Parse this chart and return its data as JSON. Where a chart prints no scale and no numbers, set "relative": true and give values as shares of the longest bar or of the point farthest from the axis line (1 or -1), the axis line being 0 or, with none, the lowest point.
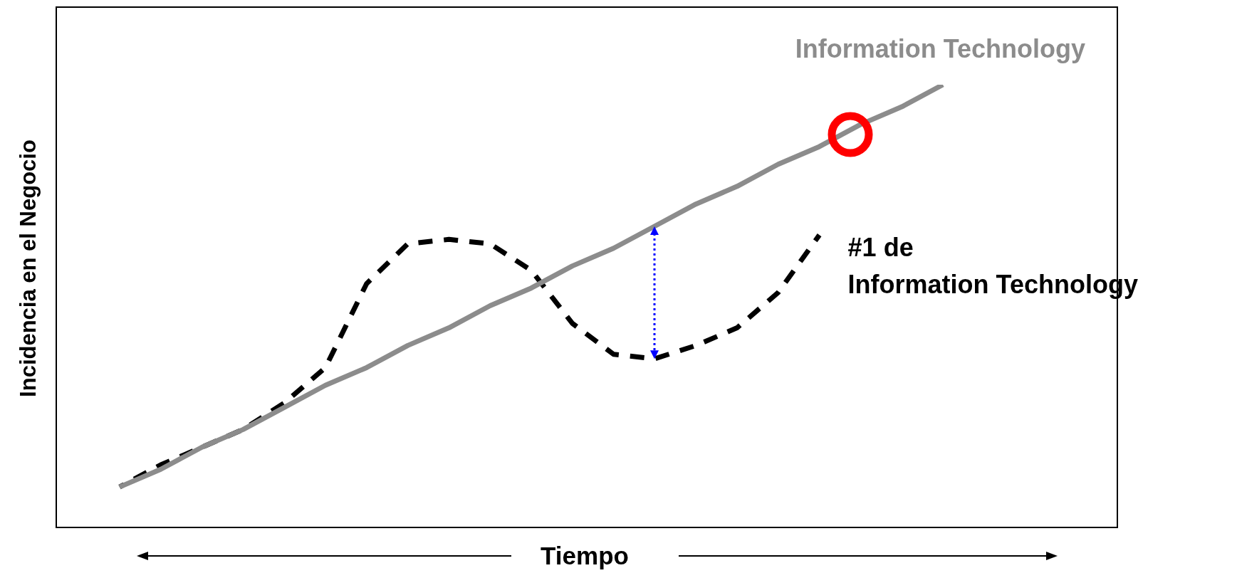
{
  "chart_data": {
    "type": "line",
    "relative": true,
    "xlabel": "Tiempo",
    "ylabel": "Incidencia en el Negocio",
    "legend": false,
    "categories": [
      null,
      null,
      null,
      null,
      null,
      null,
      null,
      null,
      null,
      null,
      null,
      null,
      null,
      null,
      null,
      null,
      null,
      null,
      null,
      null,
      null
    ],
    "series": [
      {
        "name": "Information Technology",
        "color": "#8c8c8c",
        "line_style": "solid",
        "marker": "none",
        "values": [
          0.09,
          0.13,
          0.18,
          0.22,
          0.27,
          0.32,
          0.36,
          0.41,
          0.45,
          0.5,
          0.54,
          0.59,
          0.63,
          0.68,
          0.73,
          0.77,
          0.82,
          0.86,
          0.91,
          0.95,
          1.0
        ]
      },
      {
        "name": "#1 de\nInformation Technology",
        "color": "#000000",
        "line_style": "dashed",
        "marker": "none",
        "values": [
          0.09,
          0.14,
          0.18,
          0.22,
          0.28,
          0.36,
          0.55,
          0.64,
          0.65,
          0.64,
          0.58,
          0.46,
          0.39,
          0.38,
          0.41,
          0.45,
          0.53,
          0.66,
          null,
          null,
          null
        ]
      }
    ]
  }
}
